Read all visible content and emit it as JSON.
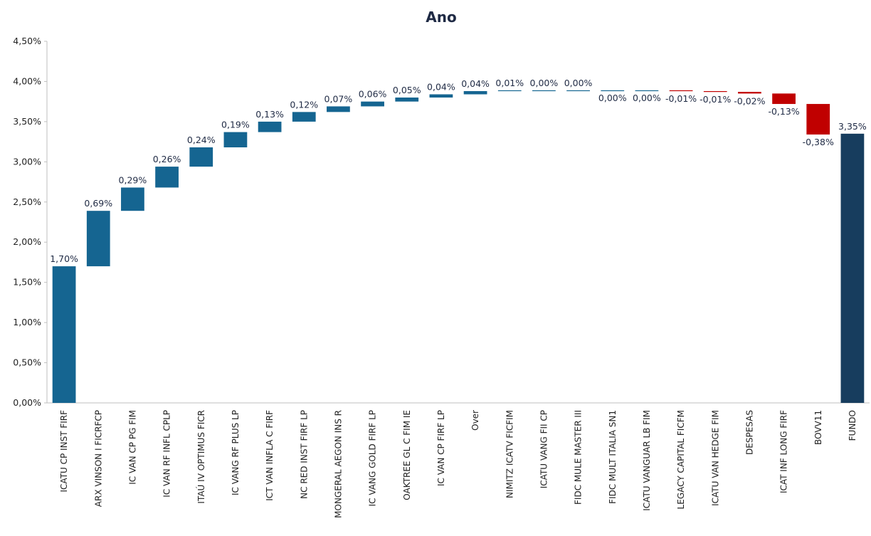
{
  "chart_data": {
    "type": "bar",
    "subtype": "waterfall",
    "title": "Ano",
    "xlabel": "",
    "ylabel": "",
    "ylim": [
      0,
      4.5
    ],
    "y_ticks": [
      "0,00%",
      "0,50%",
      "1,00%",
      "1,50%",
      "2,00%",
      "2,50%",
      "3,00%",
      "3,50%",
      "4,00%",
      "4,50%"
    ],
    "grid": false,
    "legend": "none",
    "colors": {
      "positive": "#156591",
      "negative": "#c00000",
      "total": "#173d5e",
      "axis": "#bfbfbf"
    },
    "categories": [
      "ICATU CP INST FIRF",
      "ARX VINSON I FICRFCP",
      "IC VAN CP PG FIM",
      "IC VAN RF INFL CPLP",
      "ITAÚ IV OPTIMUS FICR",
      "IC VANG RF PLUS LP",
      "ICT VAN INFLA C FIRF",
      "NC RED INST FIRF LP",
      "MONGERAL AEGON INS R",
      "IC VANG GOLD FIRF LP",
      "OAKTREE GL C FIM IE",
      "IC VAN CP FIRF LP",
      "Over",
      "NIMITZ ICATV FICFIM",
      "ICATU VANG FII CP",
      "FIDC MULE MASTER III",
      "FIDC MULT ITALIA SN1",
      "ICATU VANGUAR LB FIM",
      "LEGACY CAPITAL FICFM",
      "ICATU VAN HEDGE FIM",
      "DESPESAS",
      "ICAT INF LONG FIRF",
      "BOVV11",
      "FUNDO"
    ],
    "values": [
      1.7,
      0.69,
      0.29,
      0.26,
      0.24,
      0.19,
      0.13,
      0.12,
      0.07,
      0.06,
      0.05,
      0.04,
      0.04,
      0.01,
      0.0,
      0.0,
      0.0,
      0.0,
      -0.01,
      -0.01,
      -0.02,
      -0.13,
      -0.38,
      3.35
    ],
    "data_labels": [
      "1,70%",
      "0,69%",
      "0,29%",
      "0,26%",
      "0,24%",
      "0,19%",
      "0,13%",
      "0,12%",
      "0,07%",
      "0,06%",
      "0,05%",
      "0,04%",
      "0,04%",
      "0,01%",
      "0,00%",
      "0,00%",
      "0,00%",
      "0,00%",
      "-0,01%",
      "-0,01%",
      "-0,02%",
      "-0,13%",
      "-0,38%",
      "3,35%"
    ],
    "total_index": 23
  }
}
